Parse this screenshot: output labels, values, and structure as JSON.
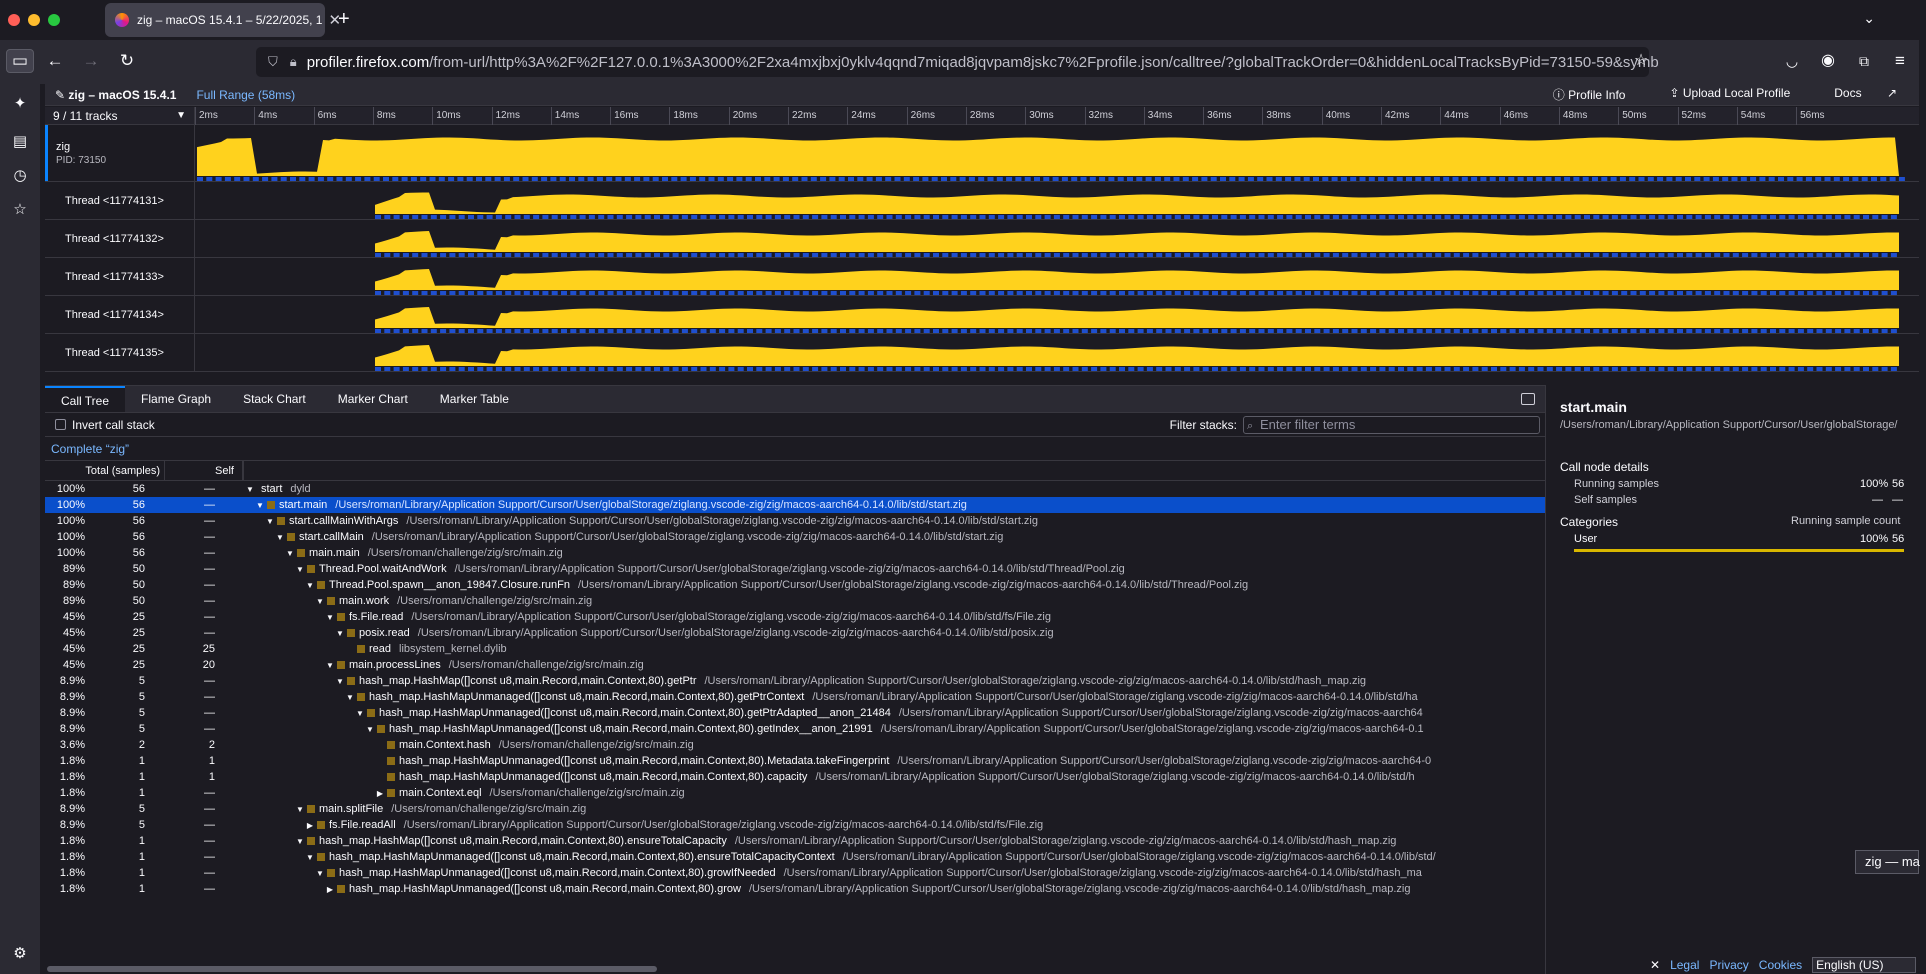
{
  "tab": {
    "title": "zig – macOS 15.4.1 – 5/22/2025, 1"
  },
  "url": {
    "domain": "profiler.firefox.com",
    "rest": "/from-url/http%3A%2F%2F127.0.0.1%3A3000%2F2xa4mxjbxj0yklv4qqnd7miqad8jqvpam8jskc7%2Fprofile.json/calltree/?globalTrackOrder=0&hiddenLocalTracksByPid=73150-59&symb"
  },
  "topbar": {
    "title": "zig – macOS 15.4.1",
    "range": "Full Range (58ms)",
    "profile_info": "Profile Info",
    "upload": "Upload Local Profile",
    "docs": "Docs"
  },
  "timeline": {
    "track_count": "9 / 11 tracks",
    "ticks": [
      "2ms",
      "4ms",
      "6ms",
      "8ms",
      "10ms",
      "12ms",
      "14ms",
      "16ms",
      "18ms",
      "20ms",
      "22ms",
      "24ms",
      "26ms",
      "28ms",
      "30ms",
      "32ms",
      "34ms",
      "36ms",
      "38ms",
      "40ms",
      "42ms",
      "44ms",
      "46ms",
      "48ms",
      "50ms",
      "52ms",
      "54ms",
      "56ms"
    ],
    "process": {
      "name": "zig",
      "pid": "PID: 73150"
    },
    "threads": [
      "Thread <11774131>",
      "Thread <11774132>",
      "Thread <11774133>",
      "Thread <11774134>",
      "Thread <11774135>"
    ]
  },
  "panel_tabs": [
    "Call Tree",
    "Flame Graph",
    "Stack Chart",
    "Marker Chart",
    "Marker Table"
  ],
  "settings": {
    "invert": "Invert call stack",
    "filter_label": "Filter stacks:",
    "filter_placeholder": "Enter filter terms"
  },
  "breadcrumb": "Complete “zig”",
  "columns": {
    "total": "Total (samples)",
    "self": "Self"
  },
  "rows": [
    {
      "pct": "100%",
      "total": "56",
      "self": "—",
      "depth": 0,
      "twisty": "▼",
      "icon": false,
      "name": "start",
      "lib": "dyld"
    },
    {
      "pct": "100%",
      "total": "56",
      "self": "—",
      "depth": 1,
      "twisty": "▼",
      "icon": true,
      "name": "start.main",
      "lib": "/Users/roman/Library/Application Support/Cursor/User/globalStorage/ziglang.vscode-zig/zig/macos-aarch64-0.14.0/lib/std/start.zig",
      "selected": true
    },
    {
      "pct": "100%",
      "total": "56",
      "self": "—",
      "depth": 2,
      "twisty": "▼",
      "icon": true,
      "name": "start.callMainWithArgs",
      "lib": "/Users/roman/Library/Application Support/Cursor/User/globalStorage/ziglang.vscode-zig/zig/macos-aarch64-0.14.0/lib/std/start.zig"
    },
    {
      "pct": "100%",
      "total": "56",
      "self": "—",
      "depth": 3,
      "twisty": "▼",
      "icon": true,
      "name": "start.callMain",
      "lib": "/Users/roman/Library/Application Support/Cursor/User/globalStorage/ziglang.vscode-zig/zig/macos-aarch64-0.14.0/lib/std/start.zig"
    },
    {
      "pct": "100%",
      "total": "56",
      "self": "—",
      "depth": 4,
      "twisty": "▼",
      "icon": true,
      "name": "main.main",
      "lib": "/Users/roman/challenge/zig/src/main.zig"
    },
    {
      "pct": "89%",
      "total": "50",
      "self": "—",
      "depth": 5,
      "twisty": "▼",
      "icon": true,
      "name": "Thread.Pool.waitAndWork",
      "lib": "/Users/roman/Library/Application Support/Cursor/User/globalStorage/ziglang.vscode-zig/zig/macos-aarch64-0.14.0/lib/std/Thread/Pool.zig"
    },
    {
      "pct": "89%",
      "total": "50",
      "self": "—",
      "depth": 6,
      "twisty": "▼",
      "icon": true,
      "name": "Thread.Pool.spawn__anon_19847.Closure.runFn",
      "lib": "/Users/roman/Library/Application Support/Cursor/User/globalStorage/ziglang.vscode-zig/zig/macos-aarch64-0.14.0/lib/std/Thread/Pool.zig"
    },
    {
      "pct": "89%",
      "total": "50",
      "self": "—",
      "depth": 7,
      "twisty": "▼",
      "icon": true,
      "name": "main.work",
      "lib": "/Users/roman/challenge/zig/src/main.zig"
    },
    {
      "pct": "45%",
      "total": "25",
      "self": "—",
      "depth": 8,
      "twisty": "▼",
      "icon": true,
      "name": "fs.File.read",
      "lib": "/Users/roman/Library/Application Support/Cursor/User/globalStorage/ziglang.vscode-zig/zig/macos-aarch64-0.14.0/lib/std/fs/File.zig"
    },
    {
      "pct": "45%",
      "total": "25",
      "self": "—",
      "depth": 9,
      "twisty": "▼",
      "icon": true,
      "name": "posix.read",
      "lib": "/Users/roman/Library/Application Support/Cursor/User/globalStorage/ziglang.vscode-zig/zig/macos-aarch64-0.14.0/lib/std/posix.zig"
    },
    {
      "pct": "45%",
      "total": "25",
      "self": "25",
      "depth": 10,
      "twisty": "",
      "icon": true,
      "name": "read",
      "lib": "libsystem_kernel.dylib"
    },
    {
      "pct": "45%",
      "total": "25",
      "self": "20",
      "depth": 8,
      "twisty": "▼",
      "icon": true,
      "name": "main.processLines",
      "lib": "/Users/roman/challenge/zig/src/main.zig"
    },
    {
      "pct": "8.9%",
      "total": "5",
      "self": "—",
      "depth": 9,
      "twisty": "▼",
      "icon": true,
      "name": "hash_map.HashMap([]const u8,main.Record,main.Context,80).getPtr",
      "lib": "/Users/roman/Library/Application Support/Cursor/User/globalStorage/ziglang.vscode-zig/zig/macos-aarch64-0.14.0/lib/std/hash_map.zig"
    },
    {
      "pct": "8.9%",
      "total": "5",
      "self": "—",
      "depth": 10,
      "twisty": "▼",
      "icon": true,
      "name": "hash_map.HashMapUnmanaged([]const u8,main.Record,main.Context,80).getPtrContext",
      "lib": "/Users/roman/Library/Application Support/Cursor/User/globalStorage/ziglang.vscode-zig/zig/macos-aarch64-0.14.0/lib/std/ha"
    },
    {
      "pct": "8.9%",
      "total": "5",
      "self": "—",
      "depth": 11,
      "twisty": "▼",
      "icon": true,
      "name": "hash_map.HashMapUnmanaged([]const u8,main.Record,main.Context,80).getPtrAdapted__anon_21484",
      "lib": "/Users/roman/Library/Application Support/Cursor/User/globalStorage/ziglang.vscode-zig/zig/macos-aarch64"
    },
    {
      "pct": "8.9%",
      "total": "5",
      "self": "—",
      "depth": 12,
      "twisty": "▼",
      "icon": true,
      "name": "hash_map.HashMapUnmanaged([]const u8,main.Record,main.Context,80).getIndex__anon_21991",
      "lib": "/Users/roman/Library/Application Support/Cursor/User/globalStorage/ziglang.vscode-zig/zig/macos-aarch64-0.1"
    },
    {
      "pct": "3.6%",
      "total": "2",
      "self": "2",
      "depth": 13,
      "twisty": "",
      "icon": true,
      "name": "main.Context.hash",
      "lib": "/Users/roman/challenge/zig/src/main.zig"
    },
    {
      "pct": "1.8%",
      "total": "1",
      "self": "1",
      "depth": 13,
      "twisty": "",
      "icon": true,
      "name": "hash_map.HashMapUnmanaged([]const u8,main.Record,main.Context,80).Metadata.takeFingerprint",
      "lib": "/Users/roman/Library/Application Support/Cursor/User/globalStorage/ziglang.vscode-zig/zig/macos-aarch64-0"
    },
    {
      "pct": "1.8%",
      "total": "1",
      "self": "1",
      "depth": 13,
      "twisty": "",
      "icon": true,
      "name": "hash_map.HashMapUnmanaged([]const u8,main.Record,main.Context,80).capacity",
      "lib": "/Users/roman/Library/Application Support/Cursor/User/globalStorage/ziglang.vscode-zig/zig/macos-aarch64-0.14.0/lib/std/h"
    },
    {
      "pct": "1.8%",
      "total": "1",
      "self": "—",
      "depth": 13,
      "twisty": "▶",
      "icon": true,
      "name": "main.Context.eql",
      "lib": "/Users/roman/challenge/zig/src/main.zig"
    },
    {
      "pct": "8.9%",
      "total": "5",
      "self": "—",
      "depth": 5,
      "twisty": "▼",
      "icon": true,
      "name": "main.splitFile",
      "lib": "/Users/roman/challenge/zig/src/main.zig"
    },
    {
      "pct": "8.9%",
      "total": "5",
      "self": "—",
      "depth": 6,
      "twisty": "▶",
      "icon": true,
      "name": "fs.File.readAll",
      "lib": "/Users/roman/Library/Application Support/Cursor/User/globalStorage/ziglang.vscode-zig/zig/macos-aarch64-0.14.0/lib/std/fs/File.zig"
    },
    {
      "pct": "1.8%",
      "total": "1",
      "self": "—",
      "depth": 5,
      "twisty": "▼",
      "icon": true,
      "name": "hash_map.HashMap([]const u8,main.Record,main.Context,80).ensureTotalCapacity",
      "lib": "/Users/roman/Library/Application Support/Cursor/User/globalStorage/ziglang.vscode-zig/zig/macos-aarch64-0.14.0/lib/std/hash_map.zig"
    },
    {
      "pct": "1.8%",
      "total": "1",
      "self": "—",
      "depth": 6,
      "twisty": "▼",
      "icon": true,
      "name": "hash_map.HashMapUnmanaged([]const u8,main.Record,main.Context,80).ensureTotalCapacityContext",
      "lib": "/Users/roman/Library/Application Support/Cursor/User/globalStorage/ziglang.vscode-zig/zig/macos-aarch64-0.14.0/lib/std/"
    },
    {
      "pct": "1.8%",
      "total": "1",
      "self": "—",
      "depth": 7,
      "twisty": "▼",
      "icon": true,
      "name": "hash_map.HashMapUnmanaged([]const u8,main.Record,main.Context,80).growIfNeeded",
      "lib": "/Users/roman/Library/Application Support/Cursor/User/globalStorage/ziglang.vscode-zig/zig/macos-aarch64-0.14.0/lib/std/hash_ma"
    },
    {
      "pct": "1.8%",
      "total": "1",
      "self": "—",
      "depth": 8,
      "twisty": "▶",
      "icon": true,
      "name": "hash_map.HashMapUnmanaged([]const u8,main.Record,main.Context,80).grow",
      "lib": "/Users/roman/Library/Application Support/Cursor/User/globalStorage/ziglang.vscode-zig/zig/macos-aarch64-0.14.0/lib/std/hash_map.zig"
    }
  ],
  "sidebar": {
    "title": "start.main",
    "path": "/Users/roman/Library/Application Support/Cursor/User/globalStorage/",
    "details_heading": "Call node details",
    "running_label": "Running samples",
    "running_pct": "100%",
    "running_val": "56",
    "self_label": "Self samples",
    "self_pct": "—",
    "self_val": "—",
    "categories_heading": "Categories",
    "running_count_label": "Running sample count",
    "category_name": "User",
    "category_pct": "100%",
    "category_val": "56",
    "category_fraction": 1.0,
    "category_color": "#d8b700"
  },
  "footer": {
    "legal": "Legal",
    "privacy": "Privacy",
    "cookies": "Cookies",
    "language": "English (US)"
  },
  "popup": "zig — ma",
  "colors": {
    "graph_yellow": "#ffd21d",
    "selection_blue": "#0a4fcb",
    "link_blue": "#7ab8ff"
  }
}
